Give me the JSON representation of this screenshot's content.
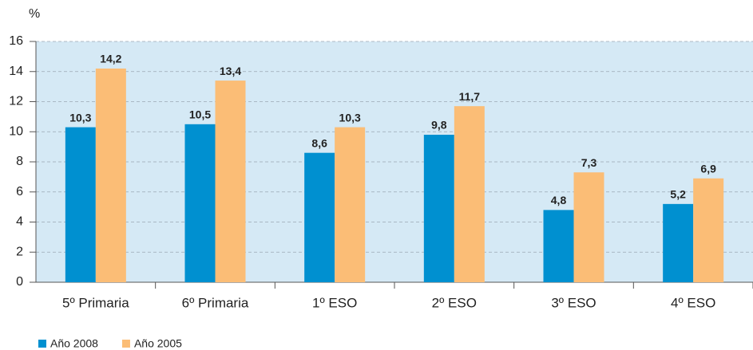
{
  "chart_data": {
    "type": "bar",
    "y_label": "%",
    "categories": [
      "5º Primaria",
      "6º Primaria",
      "1º ESO",
      "2º ESO",
      "3º ESO",
      "4º ESO"
    ],
    "series": [
      {
        "name": "Año 2008",
        "color": "#0090d0",
        "values": [
          10.3,
          10.5,
          8.6,
          9.8,
          4.8,
          5.2
        ],
        "value_labels": [
          "10,3",
          "10,5",
          "8,6",
          "9,8",
          "4,8",
          "5,2"
        ]
      },
      {
        "name": "Año 2005",
        "color": "#fbbd76",
        "values": [
          14.2,
          13.4,
          10.3,
          11.7,
          7.3,
          6.9
        ],
        "value_labels": [
          "14,2",
          "13,4",
          "10,3",
          "11,7",
          "7,3",
          "6,9"
        ]
      }
    ],
    "ylim": [
      0,
      16
    ],
    "yticks": [
      0,
      2,
      4,
      6,
      8,
      10,
      12,
      14,
      16
    ],
    "grid": true,
    "legend": "bottom-left"
  }
}
